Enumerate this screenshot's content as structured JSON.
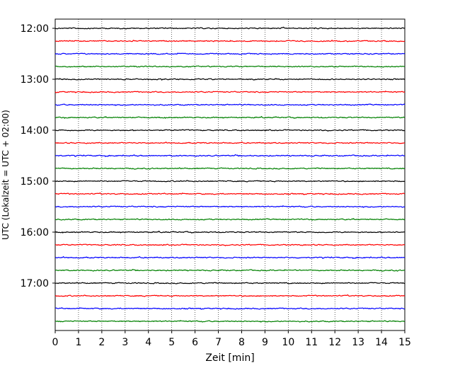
{
  "chart_data": {
    "type": "line",
    "title": "",
    "xlabel": "Zeit  [min]",
    "ylabel": "UTC (Lokalzeit = UTC + 02:00)",
    "xlim": [
      0,
      15
    ],
    "x_ticks": [
      0,
      1,
      2,
      3,
      4,
      5,
      6,
      7,
      8,
      9,
      10,
      11,
      12,
      13,
      14,
      15
    ],
    "x_tick_labels": [
      "0",
      "1",
      "2",
      "3",
      "4",
      "5",
      "6",
      "7",
      "8",
      "9",
      "10",
      "11",
      "12",
      "13",
      "14",
      "15"
    ],
    "y_ticks": [
      "12:00",
      "13:00",
      "14:00",
      "15:00",
      "16:00",
      "17:00"
    ],
    "trace_interval_min": 15,
    "start_time": "12:00",
    "trace_count": 24,
    "color_cycle": [
      "#000000",
      "#ff0000",
      "#0000ff",
      "#008000"
    ],
    "grid": "vertical dotted lines at x ticks",
    "legend": "none"
  }
}
